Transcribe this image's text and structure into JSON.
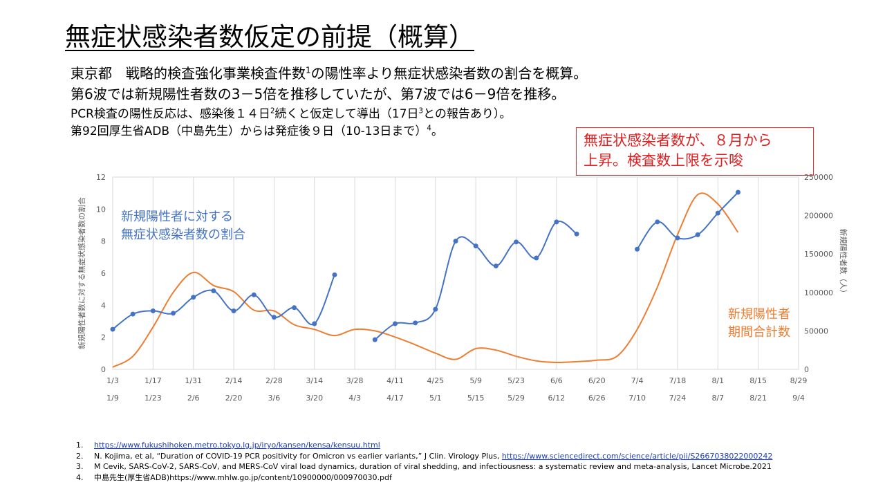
{
  "title": "無症状感染者数仮定の前提（概算）",
  "body": {
    "line1": "東京都　戦略的検査強化事業検査件数",
    "line1_sup": "1",
    "line1_tail": "の陽性率より無症状感染者数の割合を概算。",
    "line2": "第6波では新規陽性者数の3－5倍を推移していたが、第7波では6－9倍を推移。",
    "line3": "PCR検査の陽性反応は、感染後１４日",
    "line3_sup": "2",
    "line3_mid": "続くと仮定して導出（17日",
    "line3_sup2": "3",
    "line3_tail": "との報告あり）。",
    "line4": "第92回厚生省ADB（中島先生）からは発症後９日（10-13日まで）",
    "line4_sup": "4",
    "line4_tail": "。"
  },
  "callout": {
    "line1": "無症状感染者数が、８月から",
    "line2": "上昇。検査数上限を示唆"
  },
  "chart_data": {
    "type": "line",
    "x_axis": {
      "ticks_row1": [
        "1/3",
        "1/17",
        "1/31",
        "2/14",
        "2/28",
        "3/14",
        "3/28",
        "4/11",
        "4/25",
        "5/9",
        "5/23",
        "6/6",
        "6/20",
        "7/4",
        "7/18",
        "8/1",
        "8/15",
        "8/29"
      ],
      "ticks_row2": [
        "1/9",
        "1/23",
        "2/6",
        "2/20",
        "3/6",
        "3/20",
        "4/3",
        "4/17",
        "5/1",
        "5/15",
        "5/29",
        "6/12",
        "6/26",
        "7/10",
        "7/24",
        "8/7",
        "8/21",
        "9/4"
      ]
    },
    "y_left": {
      "label": "新規陽性者数に対する無症状感染者数の割合",
      "min": 0,
      "max": 12,
      "ticks": [
        0,
        2,
        4,
        6,
        8,
        10,
        12
      ]
    },
    "y_right": {
      "label": "新規陽性者数（人）",
      "min": 0,
      "max": 250000,
      "ticks": [
        0,
        50000,
        100000,
        150000,
        200000,
        250000
      ]
    },
    "grid": "vertical",
    "series": [
      {
        "name": "新規陽性者に対する無症状感染者数の割合",
        "name_lines": [
          "新規陽性者に対する",
          "無症状感染者数の割合"
        ],
        "axis": "left",
        "color": "#4472c4",
        "markers": true,
        "segments": [
          [
            [
              0,
              2.5
            ],
            [
              1,
              3.45
            ],
            [
              2,
              3.65
            ],
            [
              3,
              3.5
            ],
            [
              4,
              4.5
            ],
            [
              5,
              4.9
            ],
            [
              6,
              3.65
            ],
            [
              7,
              4.65
            ],
            [
              8,
              3.25
            ],
            [
              9,
              3.85
            ],
            [
              10,
              2.85
            ],
            [
              11,
              5.9
            ]
          ],
          [
            [
              13,
              1.85
            ],
            [
              14,
              2.85
            ],
            [
              15,
              2.9
            ],
            [
              16,
              3.75
            ],
            [
              17,
              8.0
            ],
            [
              18,
              7.7
            ],
            [
              19,
              6.45
            ],
            [
              20,
              7.95
            ],
            [
              21,
              6.95
            ],
            [
              22,
              9.2
            ],
            [
              23,
              8.45
            ]
          ],
          [
            [
              26,
              7.5
            ],
            [
              27,
              9.2
            ],
            [
              28,
              8.2
            ],
            [
              29,
              8.4
            ],
            [
              30,
              9.75
            ],
            [
              31,
              11.05
            ]
          ]
        ]
      },
      {
        "name": "新規陽性者期間合計数",
        "name_lines": [
          "新規陽性者",
          "期間合計数"
        ],
        "axis": "right",
        "color": "#ed7d31",
        "markers": false,
        "segments": [
          [
            [
              0,
              3000
            ],
            [
              1,
              17000
            ],
            [
              2,
              55000
            ],
            [
              3,
              100000
            ],
            [
              4,
              126000
            ],
            [
              5,
              109000
            ],
            [
              6,
              101000
            ],
            [
              7,
              77000
            ],
            [
              8,
              76000
            ],
            [
              9,
              58000
            ],
            [
              10,
              52000
            ],
            [
              11,
              44000
            ],
            [
              12,
              52000
            ],
            [
              13,
              50000
            ],
            [
              14,
              42000
            ],
            [
              15,
              32000
            ],
            [
              16,
              21000
            ],
            [
              17,
              13000
            ],
            [
              18,
              27000
            ],
            [
              19,
              25000
            ],
            [
              20,
              17000
            ],
            [
              21,
              11000
            ],
            [
              22,
              9000
            ],
            [
              23,
              10000
            ],
            [
              24,
              12000
            ],
            [
              25,
              17000
            ],
            [
              26,
              52000
            ],
            [
              27,
              107000
            ],
            [
              28,
              175000
            ],
            [
              29,
              227000
            ],
            [
              30,
              215000
            ],
            [
              31,
              178000
            ]
          ]
        ]
      }
    ]
  },
  "references": [
    {
      "num": "1.",
      "text": "",
      "link": "https://www.fukushihoken.metro.tokyo.lg.jp/iryo/kansen/kensa/kensuu.html"
    },
    {
      "num": "2.",
      "text": "N. Kojima, et al, “Duration of COVID-19 PCR positivity for Omicron vs earlier variants,” J Clin. Virology Plus, ",
      "link": "https://www.sciencedirect.com/science/article/pii/S2667038022000242"
    },
    {
      "num": "3.",
      "text": "M Cevik, SARS-CoV-2, SARS-CoV, and MERS-CoV viral load dynamics, duration of viral shedding, and infectiousness: a systematic review and meta-analysis, Lancet Microbe.2021",
      "link": ""
    },
    {
      "num": "4.",
      "text": "中島先生(厚生省ADB)https://www.mhlw.go.jp/content/10900000/000970030.pdf",
      "link": ""
    }
  ]
}
